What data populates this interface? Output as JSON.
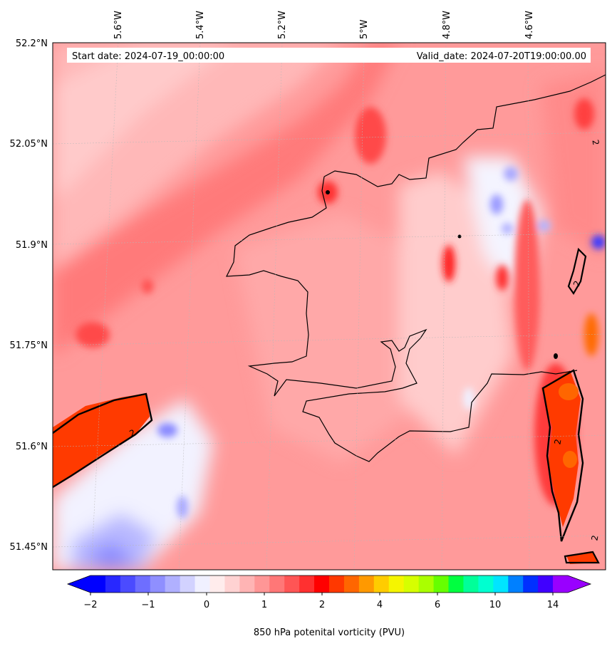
{
  "map": {
    "start_date": "Start date: 2024-07-19_00:00:00",
    "valid_date": "Valid_date: 2024-07-20T19:00:00.00",
    "lon_labels": [
      "5.6°W",
      "5.4°W",
      "5.2°W",
      "5°W",
      "4.8°W",
      "4.6°W"
    ],
    "lat_labels": [
      "52.2°N",
      "52.05°N",
      "51.9°N",
      "51.75°N",
      "51.6°N",
      "51.45°N"
    ],
    "contour_level_label": "2",
    "gridlines": true
  },
  "colorbar": {
    "label": "850 hPa potenital vorticity (PVU)",
    "ticks": [
      "−2",
      "−1",
      "0",
      "1",
      "2",
      "4",
      "6",
      "10",
      "14"
    ],
    "extend": "both",
    "colors": [
      "#0000ff",
      "#2828ff",
      "#4b4bff",
      "#6e6eff",
      "#8f8fff",
      "#b0b0ff",
      "#d2d2ff",
      "#f0f0ff",
      "#ffecec",
      "#ffd2d2",
      "#ffb4b4",
      "#ff9696",
      "#ff7777",
      "#ff5555",
      "#ff3030",
      "#ff0000",
      "#ff3800",
      "#ff6600",
      "#ff9900",
      "#ffcc00",
      "#f5f500",
      "#d6ff00",
      "#aaff00",
      "#66ff00",
      "#00ff40",
      "#00ff99",
      "#00ffd0",
      "#00e5ff",
      "#0080ff",
      "#0030ff",
      "#4000ff",
      "#9900ff"
    ]
  }
}
